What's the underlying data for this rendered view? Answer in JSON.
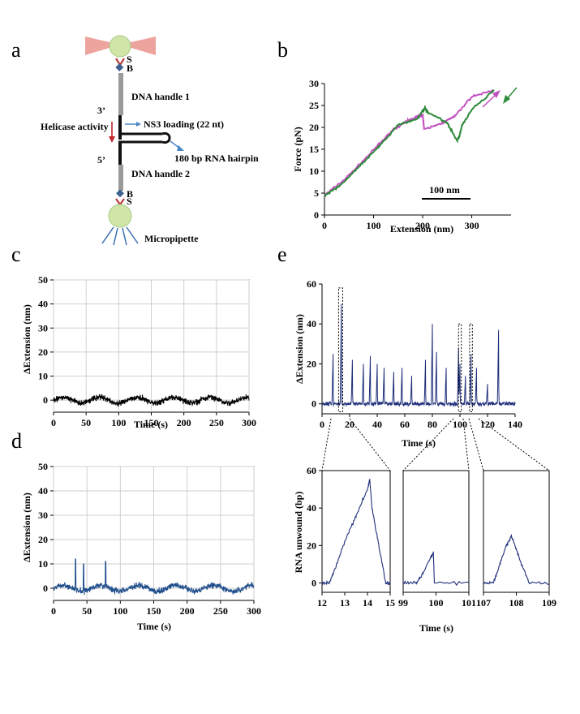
{
  "panels": {
    "a": {
      "label": "a",
      "bead_top_labels": [
        "S",
        "B"
      ],
      "bead_bottom_labels": [
        "B",
        "S"
      ],
      "handle1": "DNA handle 1",
      "end3": "3’",
      "helicase": "Helicase activity",
      "ns3": "NS3 loading  (22 nt)",
      "end5": "5’",
      "hairpin": "180 bp RNA hairpin",
      "handle2": "DNA handle 2",
      "pipette": "Micropipette",
      "colors": {
        "bead": "#cfe6a8",
        "laser": "#e8857d",
        "streptavidin": "#b83a3a",
        "biotin": "#3f5f8f",
        "handle": "#9a9a9a",
        "arrow_red": "#c0272d",
        "arrow_blue": "#4a86c5",
        "pipette": "#3a6fb0"
      }
    },
    "b": {
      "label": "b",
      "scale_bar": "100 nm"
    },
    "c": {
      "label": "c"
    },
    "d": {
      "label": "d"
    },
    "e": {
      "label": "e"
    }
  },
  "chart_data": [
    {
      "id": "b",
      "type": "line",
      "xlabel": "Extension (nm)",
      "ylabel": "Force (pN)",
      "ylim": [
        0,
        30
      ],
      "yticks": [
        0,
        5,
        10,
        15,
        20,
        25,
        30
      ],
      "xlim": [
        0,
        380
      ],
      "xticks": [
        0,
        100,
        200,
        300
      ],
      "grid": false,
      "series": [
        {
          "color": "#c251c0",
          "points": [
            [
              0,
              4.5
            ],
            [
              40,
              8
            ],
            [
              80,
              12.5
            ],
            [
              110,
              16
            ],
            [
              140,
              19.5
            ],
            [
              170,
              21.5
            ],
            [
              190,
              22.5
            ],
            [
              200,
              23
            ],
            [
              203,
              19.5
            ],
            [
              240,
              21
            ],
            [
              265,
              22.5
            ],
            [
              300,
              27
            ],
            [
              345,
              28.5
            ]
          ]
        },
        {
          "color": "#2e8a3b",
          "points": [
            [
              345,
              28.5
            ],
            [
              300,
              24
            ],
            [
              280,
              20.5
            ],
            [
              275,
              18
            ],
            [
              270,
              17
            ],
            [
              250,
              21
            ],
            [
              210,
              23.5
            ],
            [
              204,
              24.5
            ],
            [
              190,
              22
            ],
            [
              150,
              20.5
            ],
            [
              110,
              15.5
            ],
            [
              70,
              11
            ],
            [
              30,
              6.5
            ],
            [
              0,
              4.5
            ]
          ]
        }
      ],
      "arrows": [
        {
          "color": "#c251c0",
          "direction": "up"
        },
        {
          "color": "#2e8a3b",
          "direction": "down"
        }
      ]
    },
    {
      "id": "c",
      "type": "line",
      "xlabel": "Time (s)",
      "ylabel": "ΔExtension (nm)",
      "xlim": [
        0,
        300
      ],
      "xticks": [
        0,
        50,
        100,
        150,
        200,
        250,
        300
      ],
      "ylim": [
        -5,
        50
      ],
      "yticks": [
        0,
        10,
        20,
        30,
        40,
        50
      ],
      "grid": true,
      "series": [
        {
          "color": "#000000",
          "mean": 0,
          "noise": 2.0
        }
      ]
    },
    {
      "id": "d",
      "type": "line",
      "xlabel": "Time (s)",
      "ylabel": "ΔExtension (nm)",
      "xlim": [
        0,
        300
      ],
      "xticks": [
        0,
        50,
        100,
        150,
        200,
        250,
        300
      ],
      "ylim": [
        -5,
        50
      ],
      "yticks": [
        0,
        10,
        20,
        30,
        40,
        50
      ],
      "grid": true,
      "series": [
        {
          "color": "#1f4e8c",
          "mean": 0,
          "noise": 2.0,
          "spikes": [
            [
              33,
              12
            ],
            [
              45,
              10
            ],
            [
              78,
              11
            ]
          ]
        }
      ]
    },
    {
      "id": "e",
      "type": "line",
      "xlabel": "Time (s)",
      "ylabel": "ΔExtension (nm)",
      "xlim": [
        0,
        140
      ],
      "xticks": [
        0,
        20,
        40,
        60,
        80,
        100,
        120,
        140
      ],
      "ylim": [
        -5,
        60
      ],
      "yticks": [
        0,
        20,
        40,
        60
      ],
      "grid": false,
      "series": [
        {
          "color": "#1f2f7a",
          "spikes": [
            [
              8,
              25
            ],
            [
              14,
              50
            ],
            [
              22,
              22
            ],
            [
              30,
              20
            ],
            [
              35,
              24
            ],
            [
              40,
              20
            ],
            [
              45,
              18
            ],
            [
              52,
              16
            ],
            [
              58,
              18
            ],
            [
              65,
              14
            ],
            [
              75,
              22
            ],
            [
              80,
              40
            ],
            [
              83,
              26
            ],
            [
              90,
              18
            ],
            [
              99,
              28
            ],
            [
              100,
              20
            ],
            [
              104,
              14
            ],
            [
              108,
              25
            ],
            [
              112,
              18
            ],
            [
              120,
              10
            ],
            [
              128,
              37
            ]
          ]
        }
      ],
      "zoom_boxes": [
        [
          12,
          15,
          58
        ],
        [
          99,
          101,
          40
        ],
        [
          107,
          109,
          40
        ]
      ]
    },
    {
      "id": "e1",
      "type": "line",
      "xlabel": "",
      "ylabel": "RNA unwound (bp)",
      "xlim": [
        12,
        15
      ],
      "xticks": [
        12,
        13,
        14,
        15
      ],
      "ylim": [
        -5,
        60
      ],
      "yticks": [
        0,
        20,
        40,
        60
      ],
      "grid": false,
      "series": [
        {
          "color": "#1f2f7a",
          "points": [
            [
              12,
              0
            ],
            [
              12.3,
              0
            ],
            [
              12.5,
              5
            ],
            [
              13,
              22
            ],
            [
              13.5,
              36
            ],
            [
              14,
              50
            ],
            [
              14.1,
              55
            ],
            [
              14.2,
              40
            ],
            [
              14.5,
              20
            ],
            [
              14.8,
              0
            ],
            [
              15,
              0
            ]
          ]
        }
      ]
    },
    {
      "id": "e2",
      "type": "line",
      "xlabel": "Time (s)",
      "ylabel": "",
      "xlim": [
        99,
        101
      ],
      "xticks": [
        99,
        100,
        101
      ],
      "ylim": [
        -5,
        60
      ],
      "yticks": [],
      "grid": false,
      "series": [
        {
          "color": "#1f2f7a",
          "points": [
            [
              99,
              0
            ],
            [
              99.4,
              0
            ],
            [
              99.6,
              5
            ],
            [
              99.85,
              14
            ],
            [
              99.92,
              16
            ],
            [
              99.95,
              0
            ],
            [
              101,
              0
            ]
          ]
        }
      ]
    },
    {
      "id": "e3",
      "type": "line",
      "xlabel": "",
      "ylabel": "",
      "xlim": [
        107,
        109
      ],
      "xticks": [
        107,
        108,
        109
      ],
      "ylim": [
        -5,
        60
      ],
      "yticks": [],
      "grid": false,
      "series": [
        {
          "color": "#1f2f7a",
          "points": [
            [
              107,
              0
            ],
            [
              107.3,
              0
            ],
            [
              107.5,
              10
            ],
            [
              107.7,
              20
            ],
            [
              107.85,
              25
            ],
            [
              108,
              18
            ],
            [
              108.2,
              8
            ],
            [
              108.4,
              0
            ],
            [
              109,
              0
            ]
          ]
        }
      ]
    }
  ]
}
